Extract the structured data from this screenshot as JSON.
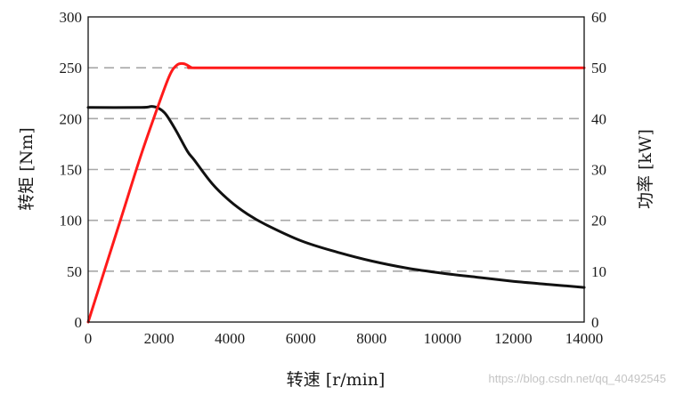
{
  "chart_data": {
    "type": "line",
    "xlabel": "转速 [r/min]",
    "ylabel": "转矩 [Nm]",
    "y2label": "功率 [kW]",
    "xlim": [
      0,
      14000
    ],
    "ylim": [
      0,
      300
    ],
    "y2lim": [
      0,
      60
    ],
    "x_ticks": [
      "0",
      "2000",
      "4000",
      "6000",
      "8000",
      "10000",
      "12000",
      "14000"
    ],
    "y_ticks": [
      "0",
      "50",
      "100",
      "150",
      "200",
      "250",
      "300"
    ],
    "y2_ticks": [
      "0",
      "10",
      "20",
      "30",
      "40",
      "50",
      "60"
    ],
    "grid": "horizontal dashed",
    "colors": {
      "torque": "#111111",
      "power": "#ff1a1a",
      "grid": "#a8a8a8"
    },
    "series": [
      {
        "axis": "left",
        "color": "#111111",
        "x": [
          0,
          1500,
          1800,
          2000,
          2200,
          2500,
          2800,
          3000,
          3500,
          4000,
          4500,
          5000,
          6000,
          7000,
          8000,
          9000,
          10000,
          11000,
          12000,
          13000,
          14000
        ],
        "y": [
          211,
          211,
          212,
          210,
          204,
          187,
          168,
          159,
          136,
          119,
          106,
          96,
          80,
          69,
          60,
          53,
          48,
          44,
          40,
          37,
          34
        ]
      },
      {
        "axis": "right",
        "color": "#ff1a1a",
        "x": [
          0,
          500,
          1000,
          1500,
          2000,
          2300,
          2500,
          2700,
          2900,
          3000,
          5000,
          8000,
          11000,
          14000
        ],
        "y": [
          0,
          11,
          22,
          33,
          43,
          48.5,
          50.5,
          50.8,
          50.1,
          50,
          50,
          50,
          50,
          50
        ]
      }
    ]
  },
  "watermark": "https://blog.csdn.net/qq_40492545"
}
